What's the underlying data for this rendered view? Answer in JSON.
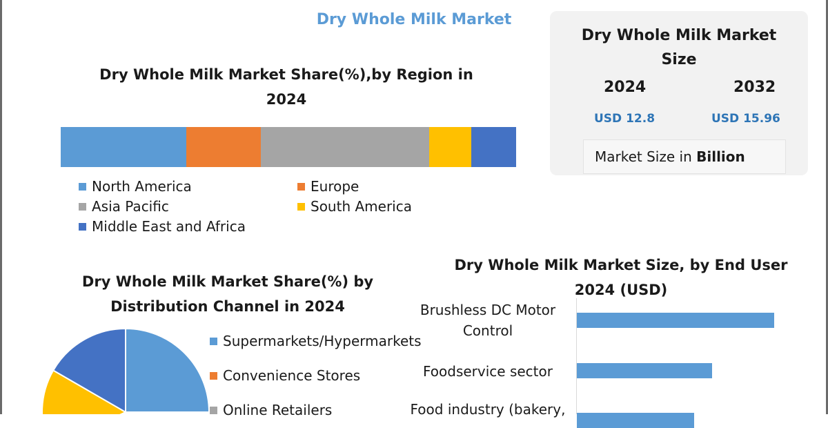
{
  "header": {
    "title": "Dry Whole Milk Market"
  },
  "region_chart": {
    "title_line1": "Dry Whole Milk Market Share(%),by Region in",
    "title_line2": "2024"
  },
  "market_size": {
    "title_line1": "Dry Whole Milk Market",
    "title_line2": "Size",
    "year_a": "2024",
    "year_b": "2032",
    "value_a": "USD 12.8",
    "value_b": "USD 15.96",
    "unit_prefix": "Market Size in ",
    "unit_bold": "Billion"
  },
  "distribution_chart": {
    "title_line1": "Dry Whole Milk Market Share(%) by",
    "title_line2": "Distribution Channel in 2024"
  },
  "end_user_chart": {
    "title_line1": "Dry Whole Milk Market Size, by End User",
    "title_line2": "2024  (USD)"
  },
  "chart_data": [
    {
      "type": "bar",
      "stacked": true,
      "orientation": "horizontal",
      "title": "Dry Whole Milk Market Share(%),by Region in 2024",
      "series": [
        {
          "name": "North America",
          "values": [
            27.5
          ],
          "color": "#5b9bd5"
        },
        {
          "name": "Europe",
          "values": [
            16.5
          ],
          "color": "#ed7d31"
        },
        {
          "name": "Asia Pacific",
          "values": [
            36.9
          ],
          "color": "#a5a5a5"
        },
        {
          "name": "South America",
          "values": [
            9.2
          ],
          "color": "#ffc000"
        },
        {
          "name": "Middle East and Africa",
          "values": [
            9.9
          ],
          "color": "#4472c4"
        }
      ],
      "legend": "bottom"
    },
    {
      "type": "pie",
      "title": "Dry Whole Milk Market Share(%) by Distribution Channel in 2024",
      "labels": [
        "Supermarkets/Hypermarkets",
        "Convenience Stores",
        "Online Retailers"
      ],
      "legend_entries": [
        {
          "label": "Supermarkets/Hypermarkets",
          "color": "#5b9bd5"
        },
        {
          "label": "Convenience Stores",
          "color": "#ed7d31"
        },
        {
          "label": "Online Retailers",
          "color": "#a5a5a5"
        }
      ],
      "visible_slices": [
        {
          "color": "#5b9bd5",
          "start_deg": 0,
          "end_deg": 90
        },
        {
          "color": "#ffc000",
          "start_deg": 245,
          "end_deg": 300
        },
        {
          "color": "#4472c4",
          "start_deg": 300,
          "end_deg": 360
        }
      ],
      "legend": "right"
    },
    {
      "type": "bar",
      "orientation": "horizontal",
      "title": "Dry Whole Milk Market Size, by End User 2024  (USD)",
      "categories": [
        "Brushless DC Motor Control",
        "Foodservice sector",
        "Food industry (bakery,"
      ],
      "category_lines": [
        [
          "Brushless DC Motor",
          "Control"
        ],
        [
          "Foodservice sector"
        ],
        [
          "Food industry (bakery,"
        ]
      ],
      "values": [
        286,
        196,
        170
      ],
      "xlim": [
        0,
        300
      ],
      "color": "#5b9bd5"
    }
  ]
}
